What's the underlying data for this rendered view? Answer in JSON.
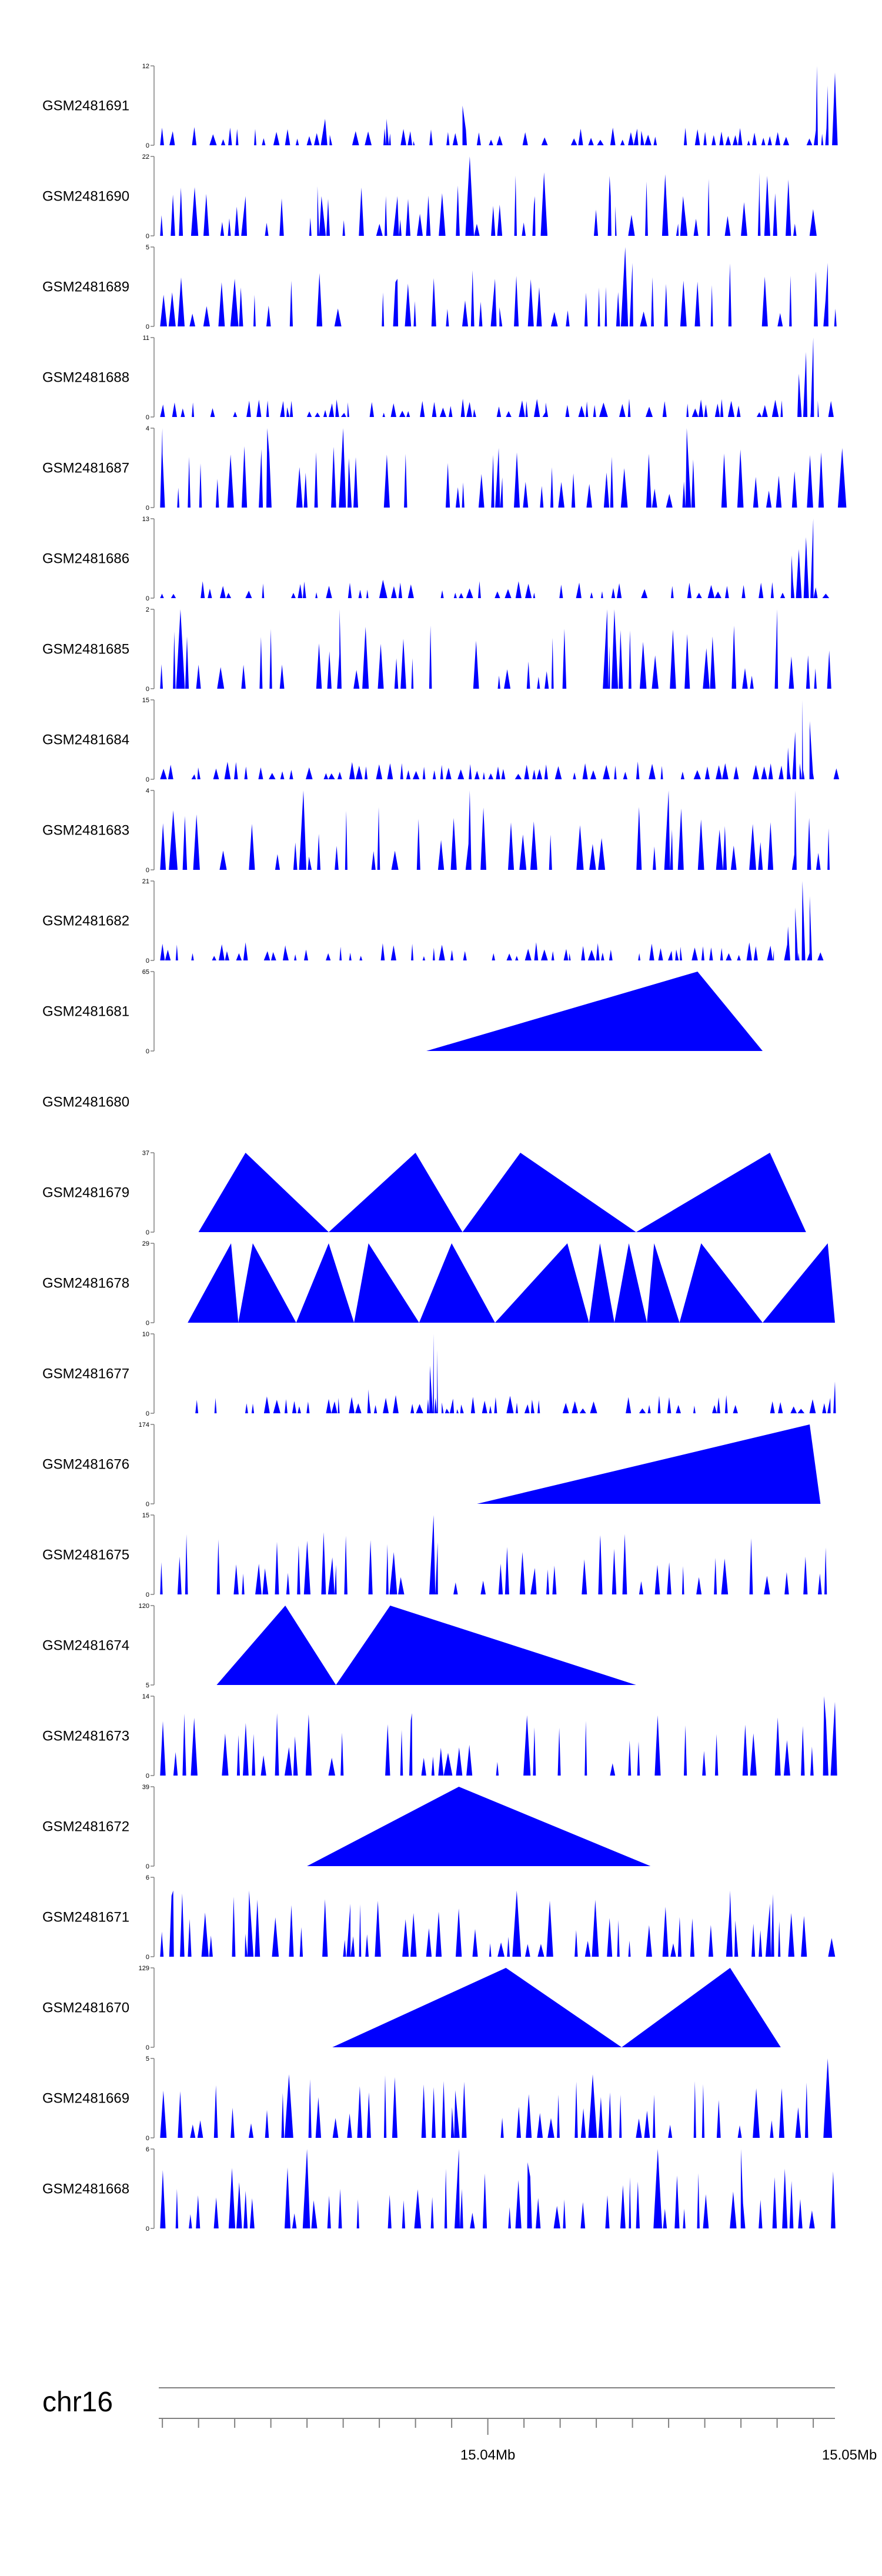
{
  "chart_data": {
    "type": "area",
    "title": "",
    "xlabel": "",
    "ylabel": "",
    "fill_color": "#0000ff",
    "chromosome": "chr16",
    "xlim": [
      15.0309,
      15.0496
    ],
    "x_ticks": [
      {
        "value": 15.04,
        "label": "15.04Mb"
      },
      {
        "value": 15.05,
        "label": "15.05Mb"
      }
    ],
    "tracks": [
      {
        "name": "GSM2481691",
        "ymax": 12,
        "ymin": 0,
        "pattern": "spiky_dense",
        "peaks": [
          [
            15.0491,
            12
          ],
          [
            15.0494,
            9
          ],
          [
            15.0496,
            11
          ],
          [
            15.0393,
            6
          ],
          [
            15.0372,
            4
          ],
          [
            15.0355,
            4
          ]
        ],
        "seed": 1
      },
      {
        "name": "GSM2481690",
        "ymax": 22,
        "ymin": 0,
        "pattern": "triangles",
        "peaks": [
          [
            15.0333,
            11
          ],
          [
            15.0354,
            11
          ],
          [
            15.0375,
            11
          ],
          [
            15.0395,
            22
          ],
          [
            15.0413,
            11
          ],
          [
            15.0434,
            11
          ],
          [
            15.0454,
            11
          ],
          [
            15.0475,
            11
          ]
        ],
        "seed": 2
      },
      {
        "name": "GSM2481689",
        "ymax": 5,
        "ymin": 0,
        "pattern": "spiky",
        "peaks": [
          [
            15.0438,
            5
          ],
          [
            15.044,
            4
          ],
          [
            15.0494,
            4
          ],
          [
            15.0375,
            3
          ],
          [
            15.033,
            3
          ],
          [
            15.0402,
            3
          ]
        ],
        "seed": 3
      },
      {
        "name": "GSM2481688",
        "ymax": 11,
        "ymin": 0,
        "pattern": "spiky_dense",
        "peaks": [
          [
            15.049,
            11
          ],
          [
            15.0488,
            9
          ],
          [
            15.0486,
            6
          ],
          [
            15.0432,
            2
          ],
          [
            15.0416,
            2
          ]
        ],
        "seed": 4
      },
      {
        "name": "GSM2481687",
        "ymax": 4,
        "ymin": 0,
        "pattern": "spiky",
        "peaks": [
          [
            15.031,
            4
          ],
          [
            15.0339,
            4
          ],
          [
            15.036,
            4
          ],
          [
            15.0403,
            3
          ],
          [
            15.0455,
            4
          ],
          [
            15.0498,
            3
          ]
        ],
        "seed": 5
      },
      {
        "name": "GSM2481686",
        "ymax": 13,
        "ymin": 0,
        "pattern": "spiky_dense",
        "peaks": [
          [
            15.049,
            13
          ],
          [
            15.0488,
            10
          ],
          [
            15.0486,
            8
          ],
          [
            15.0484,
            7
          ],
          [
            15.0371,
            3
          ]
        ],
        "seed": 6
      },
      {
        "name": "GSM2481685",
        "ymax": 2,
        "ymin": 0,
        "pattern": "spiky",
        "peaks": [
          [
            15.0433,
            2
          ],
          [
            15.0435,
            2
          ],
          [
            15.0359,
            2
          ],
          [
            15.0315,
            2
          ],
          [
            15.048,
            2
          ]
        ],
        "seed": 7
      },
      {
        "name": "GSM2481684",
        "ymax": 15,
        "ymin": 0,
        "pattern": "spiky_dense",
        "peaks": [
          [
            15.0487,
            15
          ],
          [
            15.0489,
            11
          ],
          [
            15.0485,
            9
          ],
          [
            15.0483,
            6
          ]
        ],
        "seed": 8
      },
      {
        "name": "GSM2481683",
        "ymax": 4,
        "ymin": 0,
        "pattern": "spiky",
        "peaks": [
          [
            15.0313,
            3
          ],
          [
            15.0349,
            4
          ],
          [
            15.0395,
            4
          ],
          [
            15.045,
            4
          ],
          [
            15.0485,
            4
          ]
        ],
        "seed": 9
      },
      {
        "name": "GSM2481682",
        "ymax": 21,
        "ymin": 0,
        "pattern": "spiky_dense",
        "peaks": [
          [
            15.0487,
            21
          ],
          [
            15.0489,
            17
          ],
          [
            15.0485,
            14
          ],
          [
            15.0483,
            9
          ],
          [
            15.0344,
            4
          ]
        ],
        "seed": 10
      },
      {
        "name": "GSM2481681",
        "ymax": 65,
        "ymin": 0,
        "pattern": "shapes",
        "points": [
          [
            15.0383,
            0
          ],
          [
            15.0458,
            65
          ],
          [
            15.0476,
            0
          ]
        ],
        "seed": 11
      },
      {
        "name": "GSM2481680",
        "ymax": null,
        "ymin": null,
        "pattern": "empty",
        "seed": 12
      },
      {
        "name": "GSM2481679",
        "ymax": 37,
        "ymin": 0,
        "pattern": "shapes",
        "points": [
          [
            15.032,
            0
          ],
          [
            15.0333,
            37
          ],
          [
            15.0356,
            0
          ],
          [
            15.038,
            37
          ],
          [
            15.0393,
            0
          ],
          [
            15.0409,
            37
          ],
          [
            15.0441,
            0
          ],
          [
            15.0478,
            37
          ],
          [
            15.0488,
            0
          ]
        ],
        "seed": 13
      },
      {
        "name": "GSM2481678",
        "ymax": 29,
        "ymin": 0,
        "pattern": "shapes",
        "points": [
          [
            15.0317,
            0
          ],
          [
            15.0329,
            29
          ],
          [
            15.0331,
            0
          ],
          [
            15.0335,
            29
          ],
          [
            15.0347,
            0
          ],
          [
            15.0356,
            29
          ],
          [
            15.0363,
            0
          ],
          [
            15.0367,
            29
          ],
          [
            15.0381,
            0
          ],
          [
            15.039,
            29
          ],
          [
            15.0402,
            0
          ],
          [
            15.0422,
            29
          ],
          [
            15.0428,
            0
          ],
          [
            15.0431,
            29
          ],
          [
            15.0435,
            0
          ],
          [
            15.0439,
            29
          ],
          [
            15.0444,
            0
          ],
          [
            15.0446,
            29
          ],
          [
            15.0453,
            0
          ],
          [
            15.0459,
            29
          ],
          [
            15.0476,
            0
          ],
          [
            15.0494,
            29
          ],
          [
            15.0496,
            0
          ]
        ],
        "seed": 14
      },
      {
        "name": "GSM2481677",
        "ymax": 10,
        "ymin": 0,
        "pattern": "spiky_dense",
        "peaks": [
          [
            15.0385,
            10
          ],
          [
            15.0386,
            8
          ],
          [
            15.0384,
            6
          ],
          [
            15.0496,
            4
          ],
          [
            15.0367,
            3
          ]
        ],
        "seed": 15
      },
      {
        "name": "GSM2481676",
        "ymax": 174,
        "ymin": 0,
        "pattern": "shapes",
        "points": [
          [
            15.0397,
            0
          ],
          [
            15.0489,
            174
          ],
          [
            15.0492,
            0
          ]
        ],
        "seed": 16
      },
      {
        "name": "GSM2481675",
        "ymax": 15,
        "ymin": 0,
        "pattern": "spiky",
        "peaks": [
          [
            15.0385,
            15
          ],
          [
            15.0431,
            10
          ],
          [
            15.0374,
            8
          ],
          [
            15.0357,
            7
          ],
          [
            15.0413,
            5
          ]
        ],
        "seed": 17
      },
      {
        "name": "GSM2481674",
        "ymax": 120,
        "ymin": 5,
        "pattern": "shapes",
        "points": [
          [
            15.0325,
            5
          ],
          [
            15.0344,
            120
          ],
          [
            15.0358,
            5
          ],
          [
            15.0373,
            120
          ],
          [
            15.0441,
            5
          ]
        ],
        "seed": 18
      },
      {
        "name": "GSM2481673",
        "ymax": 14,
        "ymin": 0,
        "pattern": "spiky",
        "peaks": [
          [
            15.0379,
            11
          ],
          [
            15.0493,
            14
          ],
          [
            15.0496,
            13
          ],
          [
            15.0345,
            5
          ],
          [
            15.0389,
            4
          ]
        ],
        "seed": 19
      },
      {
        "name": "GSM2481672",
        "ymax": 39,
        "ymin": 0,
        "pattern": "shapes",
        "points": [
          [
            15.035,
            0
          ],
          [
            15.0392,
            39
          ],
          [
            15.0445,
            0
          ]
        ],
        "seed": 20
      },
      {
        "name": "GSM2481671",
        "ymax": 6,
        "ymin": 0,
        "pattern": "spiky",
        "peaks": [
          [
            15.0313,
            5
          ],
          [
            15.0334,
            5
          ],
          [
            15.0362,
            4
          ],
          [
            15.0408,
            5
          ],
          [
            15.0467,
            5
          ],
          [
            15.0478,
            4
          ]
        ],
        "seed": 21
      },
      {
        "name": "GSM2481670",
        "ymax": 129,
        "ymin": 0,
        "pattern": "shapes",
        "points": [
          [
            15.0357,
            0
          ],
          [
            15.0405,
            129
          ],
          [
            15.0437,
            0
          ],
          [
            15.0467,
            129
          ],
          [
            15.0481,
            0
          ]
        ],
        "seed": 22
      },
      {
        "name": "GSM2481669",
        "ymax": 5,
        "ymin": 0,
        "pattern": "spiky",
        "peaks": [
          [
            15.0494,
            5
          ],
          [
            15.0429,
            4
          ],
          [
            15.0345,
            4
          ],
          [
            15.0391,
            3
          ]
        ],
        "seed": 23
      },
      {
        "name": "GSM2481668",
        "ymax": 6,
        "ymin": 0,
        "pattern": "spiky",
        "peaks": [
          [
            15.035,
            6
          ],
          [
            15.0447,
            6
          ],
          [
            15.047,
            6
          ],
          [
            15.0392,
            6
          ],
          [
            15.0411,
            5
          ]
        ],
        "seed": 24
      }
    ]
  }
}
